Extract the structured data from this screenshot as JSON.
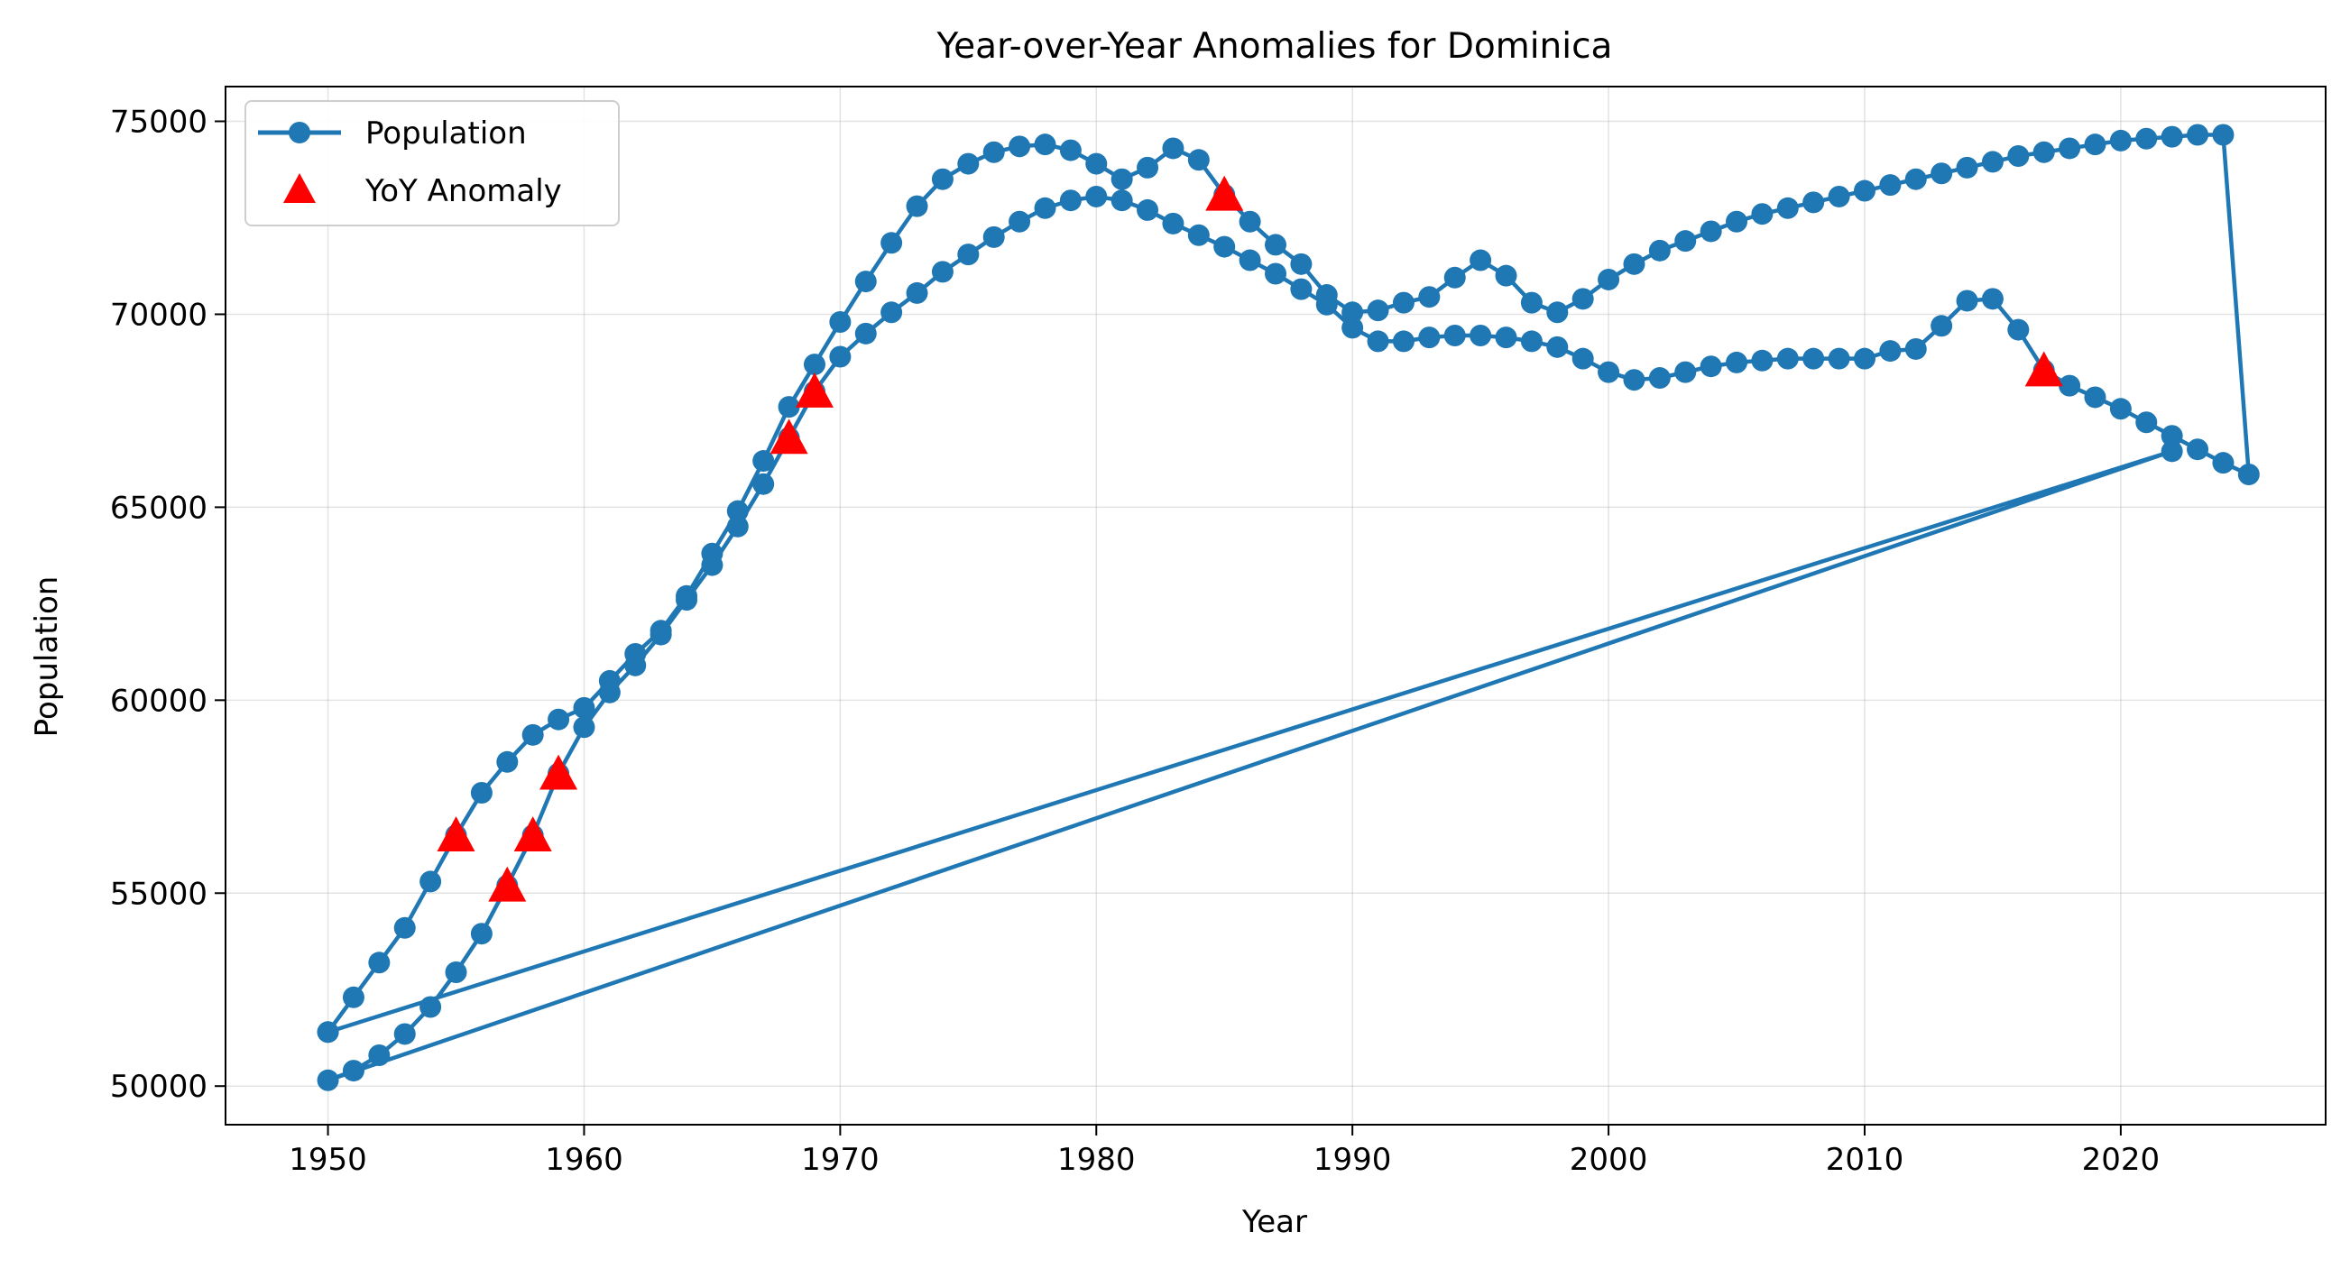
{
  "chart_data": {
    "type": "line",
    "title": "Year-over-Year Anomalies for Dominica",
    "xlabel": "Year",
    "ylabel": "Population",
    "xlim": [
      1946,
      2028
    ],
    "ylim": [
      49000,
      75900
    ],
    "xticks": [
      1950,
      1960,
      1970,
      1980,
      1990,
      2000,
      2010,
      2020
    ],
    "yticks": [
      50000,
      55000,
      60000,
      65000,
      70000,
      75000
    ],
    "grid": true,
    "legend_position": "top-left",
    "series": [
      {
        "name": "Population",
        "kind": "line-with-markers",
        "color": "#1f77b4",
        "points": [
          [
            1950,
            51400
          ],
          [
            1951,
            52300
          ],
          [
            1952,
            53200
          ],
          [
            1953,
            54100
          ],
          [
            1954,
            55300
          ],
          [
            1955,
            56500
          ],
          [
            1956,
            57600
          ],
          [
            1957,
            58400
          ],
          [
            1958,
            59100
          ],
          [
            1959,
            59500
          ],
          [
            1960,
            59800
          ],
          [
            1961,
            60500
          ],
          [
            1962,
            61200
          ],
          [
            1963,
            61800
          ],
          [
            1964,
            62700
          ],
          [
            1965,
            63800
          ],
          [
            1966,
            64900
          ],
          [
            1967,
            66200
          ],
          [
            1968,
            67600
          ],
          [
            1969,
            68700
          ],
          [
            1970,
            69800
          ],
          [
            1971,
            70850
          ],
          [
            1972,
            71850
          ],
          [
            1973,
            72800
          ],
          [
            1974,
            73500
          ],
          [
            1975,
            73900
          ],
          [
            1976,
            74200
          ],
          [
            1977,
            74350
          ],
          [
            1978,
            74400
          ],
          [
            1979,
            74250
          ],
          [
            1980,
            73900
          ],
          [
            1981,
            73500
          ],
          [
            1982,
            73800
          ],
          [
            1983,
            74300
          ],
          [
            1984,
            74000
          ],
          [
            1985,
            73100
          ],
          [
            1986,
            72400
          ],
          [
            1987,
            71800
          ],
          [
            1988,
            71300
          ],
          [
            1989,
            70500
          ],
          [
            1990,
            70050
          ],
          [
            1991,
            70100
          ],
          [
            1992,
            70300
          ],
          [
            1993,
            70450
          ],
          [
            1994,
            70950
          ],
          [
            1995,
            71400
          ],
          [
            1996,
            71000
          ],
          [
            1997,
            70300
          ],
          [
            1998,
            70050
          ],
          [
            1999,
            70400
          ],
          [
            2000,
            70900
          ],
          [
            2001,
            71300
          ],
          [
            2002,
            71650
          ],
          [
            2003,
            71900
          ],
          [
            2004,
            72150
          ],
          [
            2005,
            72400
          ],
          [
            2006,
            72600
          ],
          [
            2007,
            72750
          ],
          [
            2008,
            72900
          ],
          [
            2009,
            73050
          ],
          [
            2010,
            73200
          ],
          [
            2011,
            73350
          ],
          [
            2012,
            73500
          ],
          [
            2013,
            73650
          ],
          [
            2014,
            73800
          ],
          [
            2015,
            73950
          ],
          [
            2016,
            74100
          ],
          [
            2017,
            74200
          ],
          [
            2018,
            74300
          ],
          [
            2019,
            74400
          ],
          [
            2020,
            74500
          ],
          [
            2021,
            74550
          ],
          [
            2022,
            74600
          ],
          [
            2023,
            74650
          ],
          [
            2024,
            74650
          ],
          [
            2025,
            65850
          ],
          [
            2024,
            66150
          ],
          [
            2023,
            66500
          ],
          [
            2022,
            66850
          ],
          [
            2021,
            67200
          ],
          [
            2020,
            67550
          ],
          [
            2019,
            67850
          ],
          [
            2018,
            68150
          ],
          [
            2017,
            68550
          ],
          [
            2016,
            69600
          ],
          [
            2015,
            70400
          ],
          [
            2014,
            70350
          ],
          [
            2013,
            69700
          ],
          [
            2012,
            69100
          ],
          [
            2011,
            69050
          ],
          [
            2010,
            68850
          ],
          [
            2009,
            68850
          ],
          [
            2008,
            68850
          ],
          [
            2007,
            68850
          ],
          [
            2006,
            68800
          ],
          [
            2005,
            68750
          ],
          [
            2004,
            68650
          ],
          [
            2003,
            68500
          ],
          [
            2002,
            68350
          ],
          [
            2001,
            68300
          ],
          [
            2000,
            68500
          ],
          [
            1999,
            68850
          ],
          [
            1998,
            69150
          ],
          [
            1997,
            69300
          ],
          [
            1996,
            69400
          ],
          [
            1995,
            69450
          ],
          [
            1994,
            69450
          ],
          [
            1993,
            69400
          ],
          [
            1992,
            69300
          ],
          [
            1991,
            69300
          ],
          [
            1990,
            69650
          ],
          [
            1989,
            70250
          ],
          [
            1988,
            70650
          ],
          [
            1987,
            71050
          ],
          [
            1986,
            71400
          ],
          [
            1985,
            71750
          ],
          [
            1984,
            72050
          ],
          [
            1983,
            72350
          ],
          [
            1982,
            72700
          ],
          [
            1981,
            72950
          ],
          [
            1980,
            73050
          ],
          [
            1979,
            72950
          ],
          [
            1978,
            72750
          ],
          [
            1977,
            72400
          ],
          [
            1976,
            72000
          ],
          [
            1975,
            71550
          ],
          [
            1974,
            71100
          ],
          [
            1973,
            70550
          ],
          [
            1972,
            70050
          ],
          [
            1971,
            69500
          ],
          [
            1970,
            68900
          ],
          [
            1969,
            68000
          ],
          [
            1968,
            66800
          ],
          [
            1967,
            65600
          ],
          [
            1966,
            64500
          ],
          [
            1965,
            63500
          ],
          [
            1964,
            62600
          ],
          [
            1963,
            61700
          ],
          [
            1962,
            60900
          ],
          [
            1961,
            60200
          ],
          [
            1960,
            59300
          ],
          [
            1959,
            58100
          ],
          [
            1958,
            56500
          ],
          [
            1957,
            55200
          ],
          [
            1956,
            53950
          ],
          [
            1955,
            52950
          ],
          [
            1954,
            52050
          ],
          [
            1953,
            51350
          ],
          [
            1952,
            50800
          ],
          [
            1951,
            50400
          ],
          [
            1950,
            50150
          ],
          [
            2022,
            66450
          ],
          [
            1950,
            51400
          ]
        ]
      },
      {
        "name": "YoY Anomaly",
        "kind": "scatter-triangle",
        "color": "#ff0000",
        "points": [
          [
            1955,
            56500
          ],
          [
            1957,
            55200
          ],
          [
            1958,
            56500
          ],
          [
            1959,
            58100
          ],
          [
            1968,
            66800
          ],
          [
            1969,
            68000
          ],
          [
            1985,
            73100
          ],
          [
            2017,
            68550
          ]
        ]
      }
    ]
  }
}
